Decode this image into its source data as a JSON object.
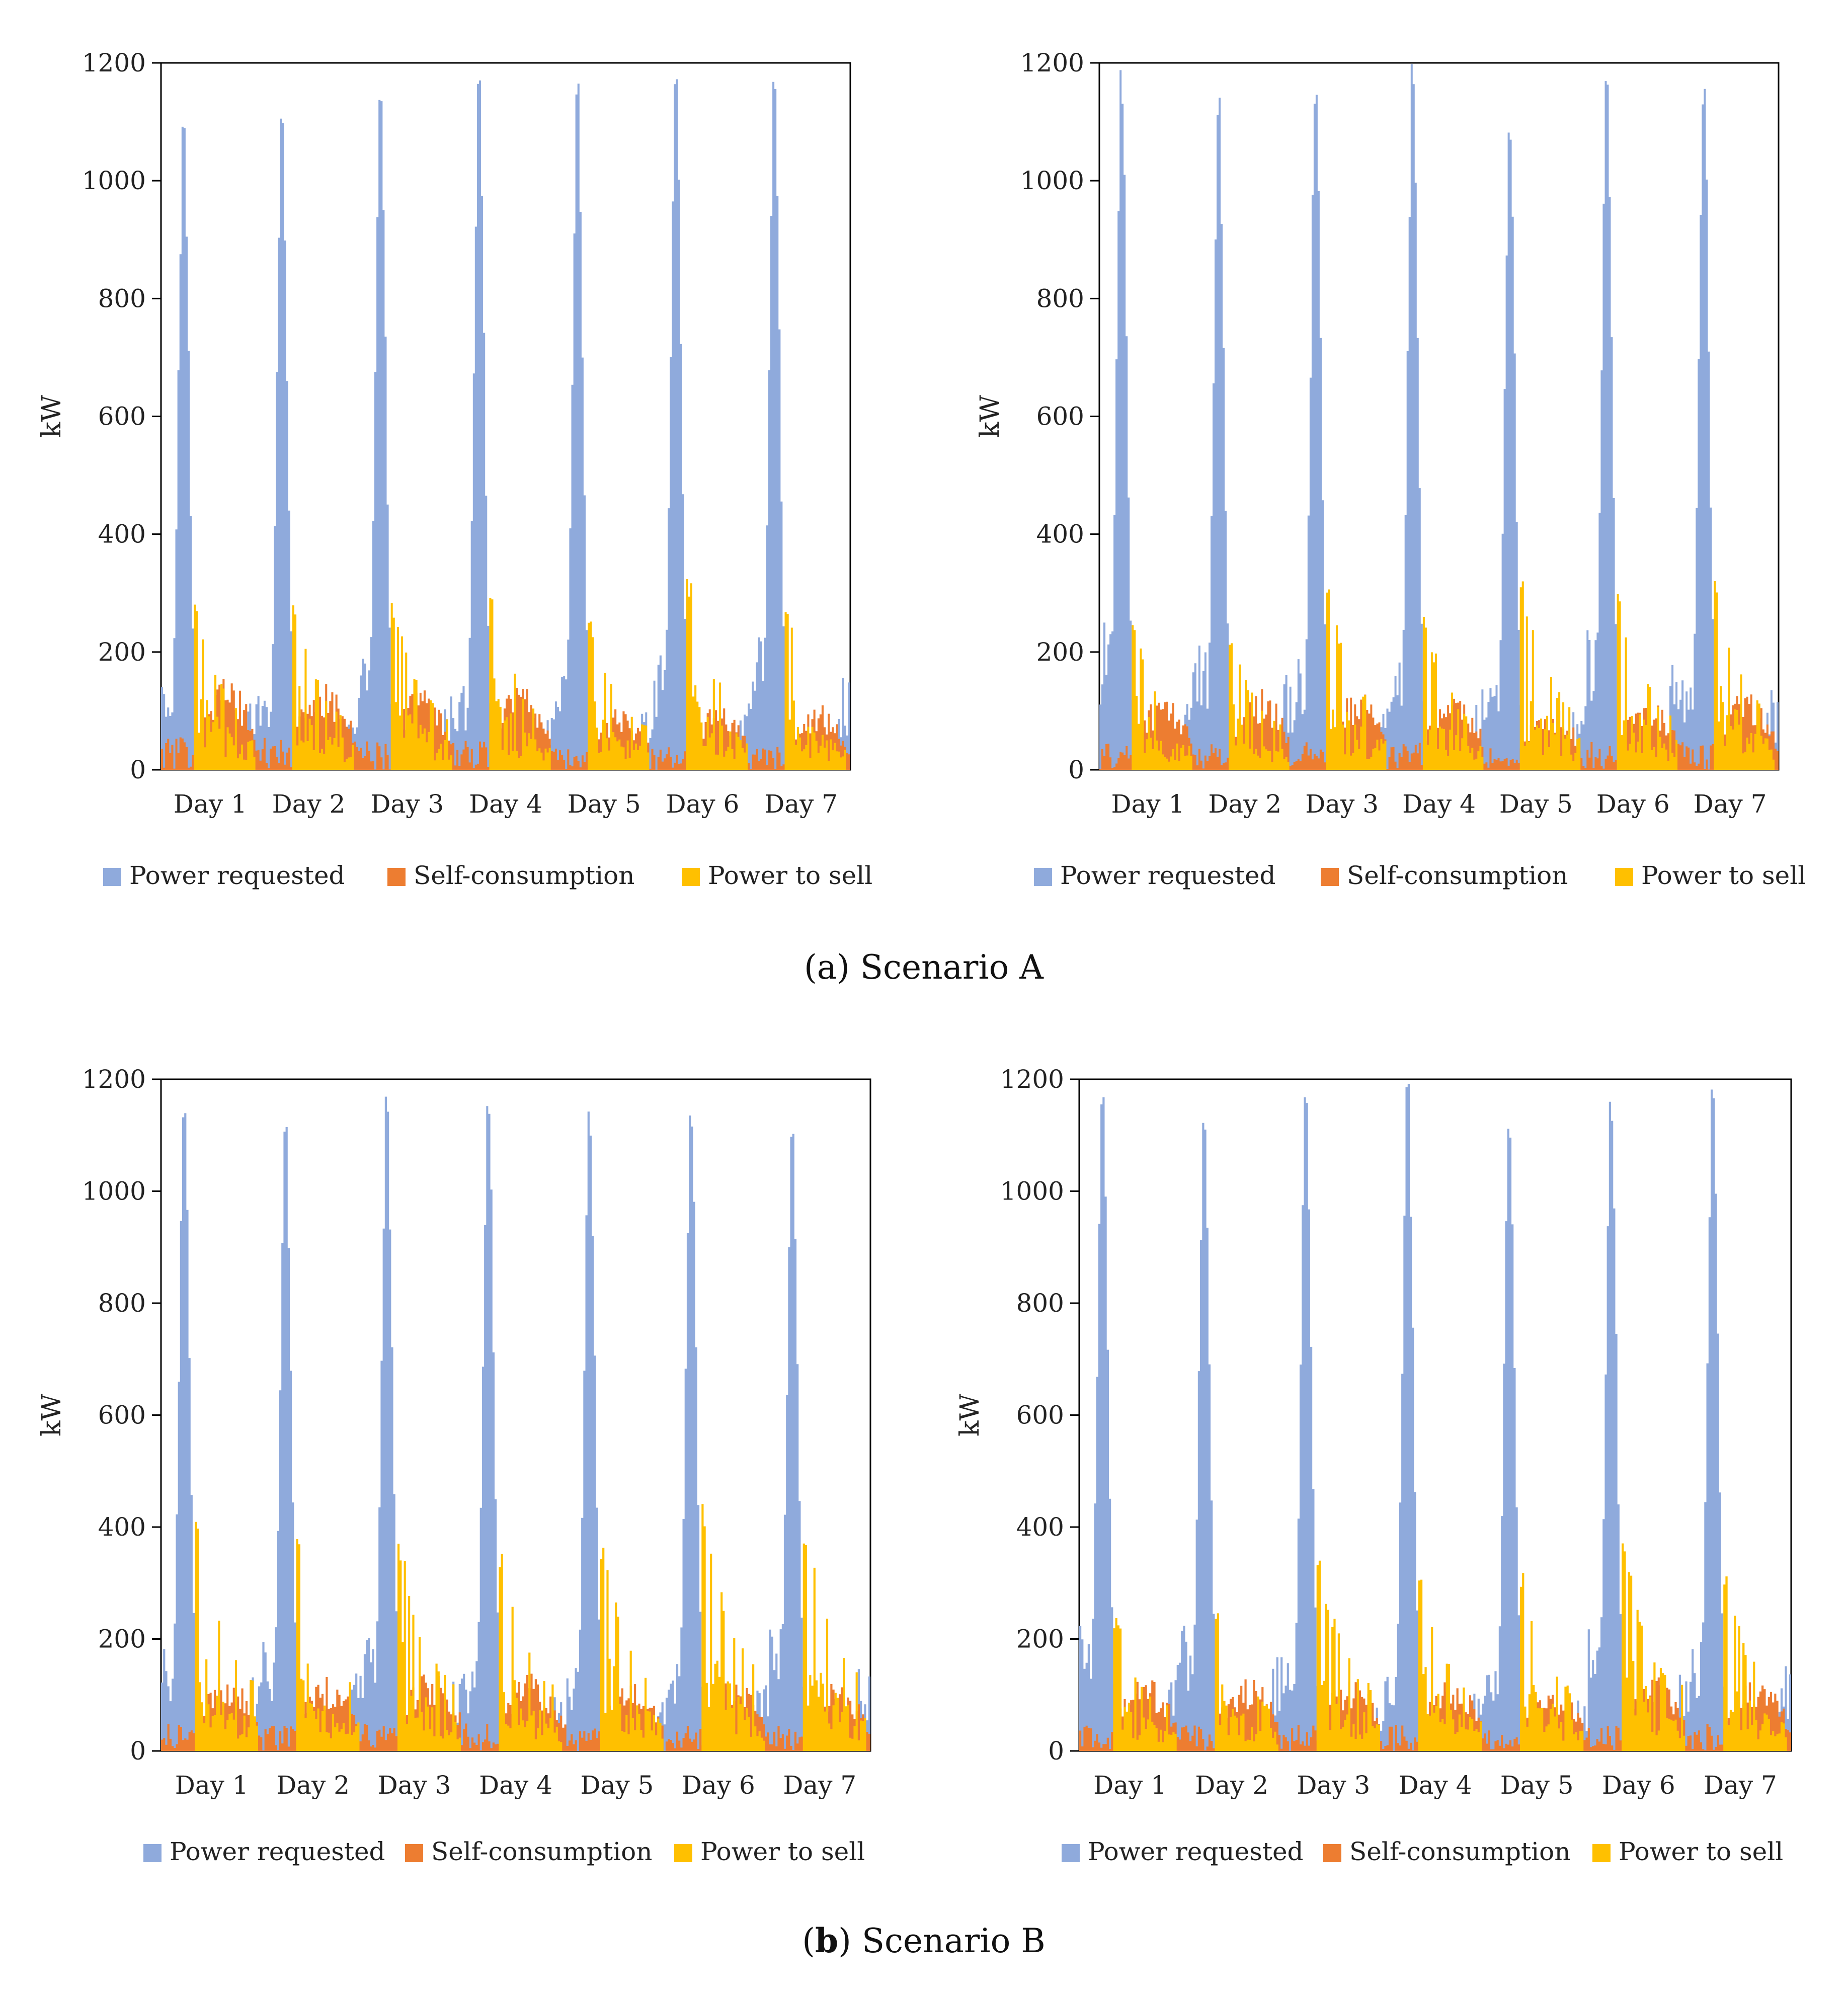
{
  "figure": {
    "caption_a": {
      "open": "(a) ",
      "text": "Scenario A"
    },
    "caption_b": {
      "open": "(",
      "bold": "b",
      "close": ") ",
      "text": "Scenario B"
    }
  },
  "colors": {
    "power_requested": "#8faadc",
    "self_consumption": "#ed7d31",
    "power_to_sell": "#ffc000"
  },
  "chart_data": [
    {
      "id": "a-left",
      "scenario": "Scenario A",
      "type": "area",
      "xlabel": "",
      "ylabel": "kW",
      "ylim": [
        0,
        1200
      ],
      "yticks": [
        0,
        200,
        400,
        600,
        800,
        1000,
        1200
      ],
      "categories": [
        "Day 1",
        "Day 2",
        "Day 3",
        "Day 4",
        "Day 5",
        "Day 6",
        "Day 7"
      ],
      "legend": [
        "Power requested",
        "Self-consumption",
        "Power to sell"
      ],
      "series": [
        {
          "name": "Power requested",
          "peak_values": [
            1135,
            1120,
            1180,
            1190,
            1165,
            1200,
            1185
          ],
          "base_values": [
            180,
            140,
            190,
            150,
            160,
            200,
            260
          ]
        },
        {
          "name": "Self-consumption",
          "peak_values": [
            160,
            155,
            150,
            155,
            105,
            110,
            115
          ]
        },
        {
          "name": "Power to sell",
          "peak_values": [
            290,
            290,
            285,
            300,
            255,
            325,
            280
          ]
        }
      ]
    },
    {
      "id": "a-right",
      "scenario": "Scenario A",
      "type": "area",
      "xlabel": "",
      "ylabel": "kW",
      "ylim": [
        0,
        1200
      ],
      "yticks": [
        0,
        200,
        400,
        600,
        800,
        1000,
        1200
      ],
      "categories": [
        "Day 1",
        "Day 2",
        "Day 3",
        "Day 4",
        "Day 5",
        "Day 6",
        "Day 7"
      ],
      "legend": [
        "Power requested",
        "Self-consumption",
        "Power to sell"
      ],
      "series": [
        {
          "name": "Power requested",
          "peak_values": [
            1190,
            1155,
            1185,
            1200,
            1125,
            1200,
            1185
          ],
          "base_values": [
            270,
            255,
            190,
            210,
            145,
            270,
            200
          ]
        },
        {
          "name": "Self-consumption",
          "peak_values": [
            130,
            140,
            135,
            135,
            110,
            135,
            140
          ]
        },
        {
          "name": "Power to sell",
          "peak_values": [
            250,
            230,
            320,
            260,
            325,
            300,
            325
          ]
        }
      ]
    },
    {
      "id": "b-left",
      "scenario": "Scenario B",
      "type": "area",
      "xlabel": "",
      "ylabel": "kW",
      "ylim": [
        0,
        1200
      ],
      "yticks": [
        0,
        200,
        400,
        600,
        800,
        1000,
        1200
      ],
      "categories": [
        "Day 1",
        "Day 2",
        "Day 3",
        "Day 4",
        "Day 5",
        "Day 6",
        "Day 7"
      ],
      "legend": [
        "Power requested",
        "Self-consumption",
        "Power to sell"
      ],
      "series": [
        {
          "name": "Power requested",
          "peak_values": [
            1150,
            1120,
            1175,
            1190,
            1155,
            1160,
            1130
          ],
          "base_values": [
            190,
            200,
            205,
            165,
            150,
            170,
            230
          ]
        },
        {
          "name": "Self-consumption",
          "peak_values": [
            140,
            135,
            145,
            140,
            125,
            130,
            130
          ]
        },
        {
          "name": "Power to sell",
          "peak_values": [
            410,
            385,
            375,
            355,
            370,
            445,
            405
          ]
        }
      ]
    },
    {
      "id": "b-right",
      "scenario": "Scenario B",
      "type": "area",
      "xlabel": "",
      "ylabel": "kW",
      "ylim": [
        0,
        1200
      ],
      "yticks": [
        0,
        200,
        400,
        600,
        800,
        1000,
        1200
      ],
      "categories": [
        "Day 1",
        "Day 2",
        "Day 3",
        "Day 4",
        "Day 5",
        "Day 6",
        "Day 7"
      ],
      "legend": [
        "Power requested",
        "Self-consumption",
        "Power to sell"
      ],
      "series": [
        {
          "name": "Power requested",
          "peak_values": [
            1190,
            1165,
            1185,
            1200,
            1150,
            1180,
            1195
          ],
          "base_values": [
            255,
            240,
            160,
            160,
            145,
            245,
            235
          ]
        },
        {
          "name": "Self-consumption",
          "peak_values": [
            130,
            135,
            135,
            135,
            115,
            135,
            140
          ]
        },
        {
          "name": "Power to sell",
          "peak_values": [
            240,
            250,
            355,
            320,
            325,
            375,
            315
          ]
        }
      ]
    }
  ]
}
